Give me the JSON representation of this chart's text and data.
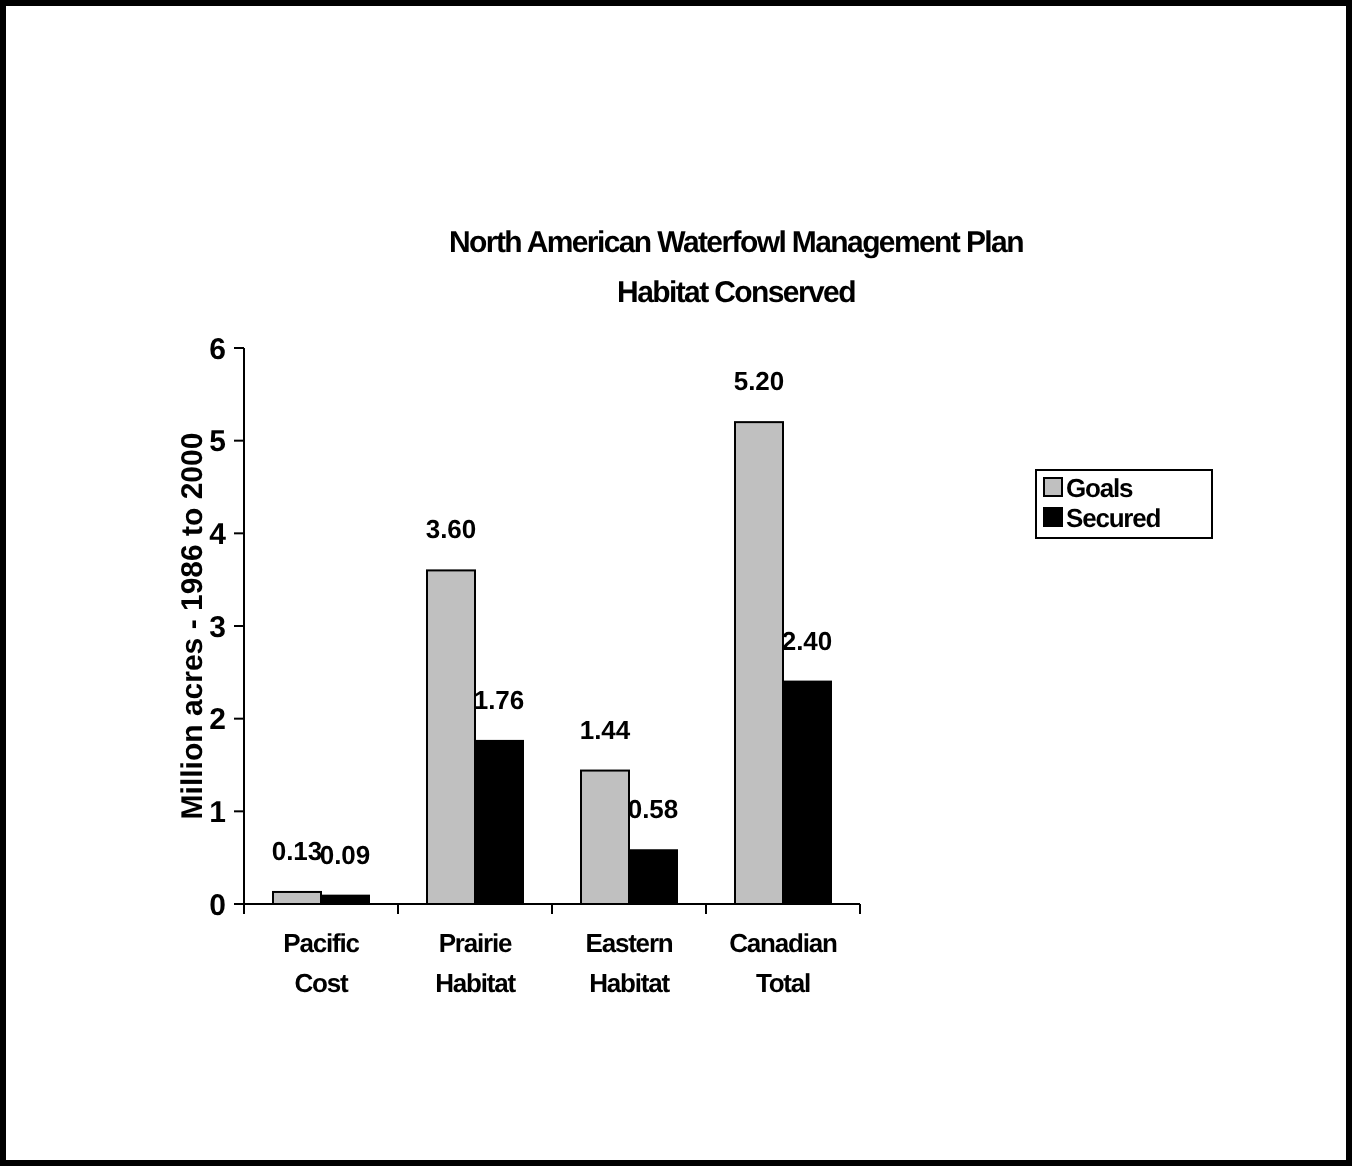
{
  "chart_data": {
    "type": "bar",
    "title": "North American Waterfowl Management Plan",
    "subtitle": "Habitat Conserved",
    "ylabel": "Million acres - 1986 to 2000",
    "categories": [
      "Pacific Cost",
      "Prairie Habitat",
      "Eastern Habitat",
      "Canadian Total"
    ],
    "series": [
      {
        "name": "Goals",
        "color": "#c0c0c0",
        "values": [
          0.13,
          3.6,
          1.44,
          5.2
        ],
        "value_labels": [
          "0.13",
          "3.60",
          "1.44",
          "5.20"
        ]
      },
      {
        "name": "Secured",
        "color": "#000000",
        "values": [
          0.09,
          1.76,
          0.58,
          2.4
        ],
        "value_labels": [
          "0.09",
          "1.76",
          "0.58",
          "2.40"
        ]
      }
    ],
    "ylim": [
      0,
      6
    ],
    "yticks": [
      0,
      1,
      2,
      3,
      4,
      5,
      6
    ],
    "grid": false,
    "legend": "right"
  }
}
